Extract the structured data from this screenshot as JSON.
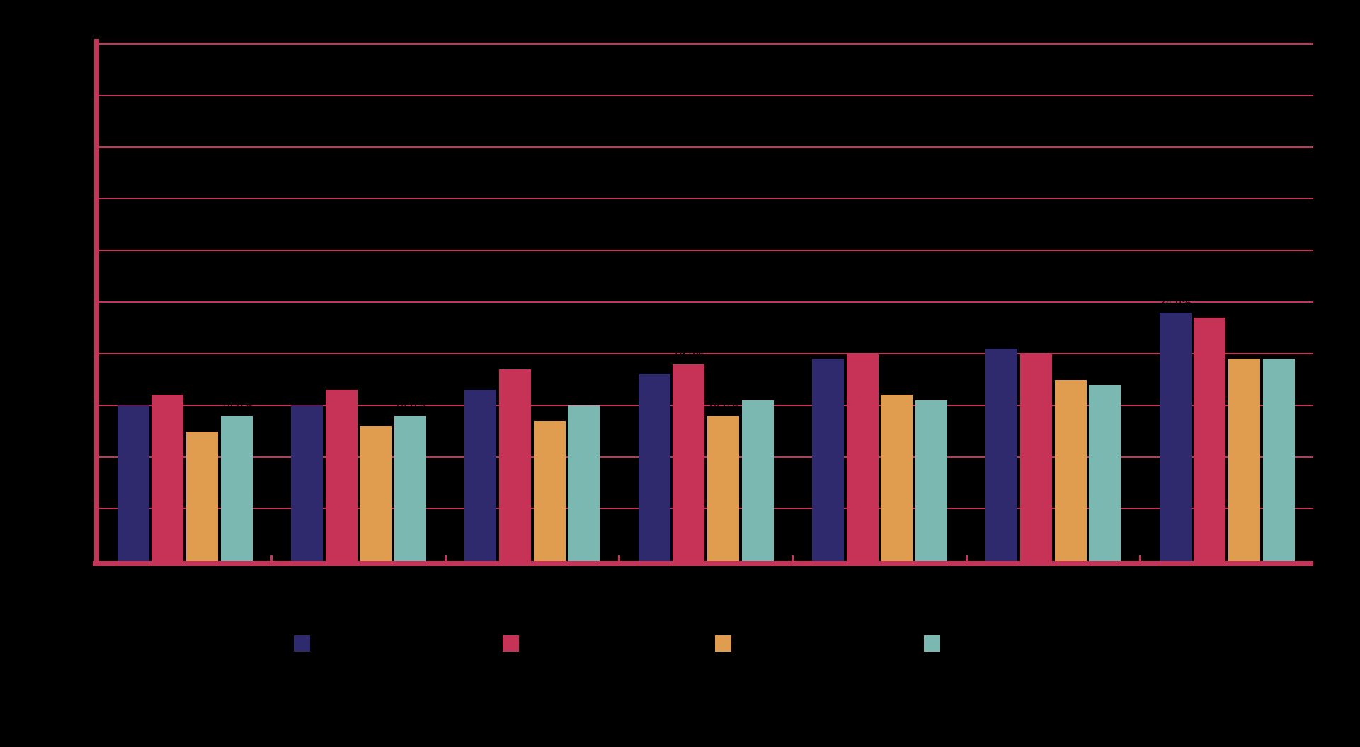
{
  "chart_data": {
    "type": "bar",
    "title": "",
    "xlabel": "",
    "ylabel": "",
    "categories": [
      "",
      "",
      "",
      "",
      "",
      "",
      ""
    ],
    "series": [
      {
        "name": "",
        "color": "#2F2A6E",
        "values": [
          15.0,
          15.0,
          16.5,
          18.0,
          19.5,
          20.5,
          24.0
        ]
      },
      {
        "name": "",
        "color": "#C73356",
        "values": [
          16.0,
          16.5,
          18.5,
          19.0,
          20.0,
          20.0,
          23.5
        ]
      },
      {
        "name": "",
        "color": "#E09C4F",
        "values": [
          12.5,
          13.0,
          13.5,
          14.0,
          16.0,
          17.5,
          19.5
        ]
      },
      {
        "name": "",
        "color": "#7AB8B1",
        "values": [
          14.0,
          14.0,
          15.0,
          15.5,
          15.5,
          17.0,
          19.5
        ]
      }
    ],
    "ylim": [
      0,
      50
    ],
    "grid_step": 5,
    "grid_on": true,
    "legend_position": "bottom",
    "value_label_format": "{value}%",
    "value_labels_color": "#000000",
    "text_color": "#000000",
    "axis_color": "#C53459",
    "background_color": "#000000"
  }
}
